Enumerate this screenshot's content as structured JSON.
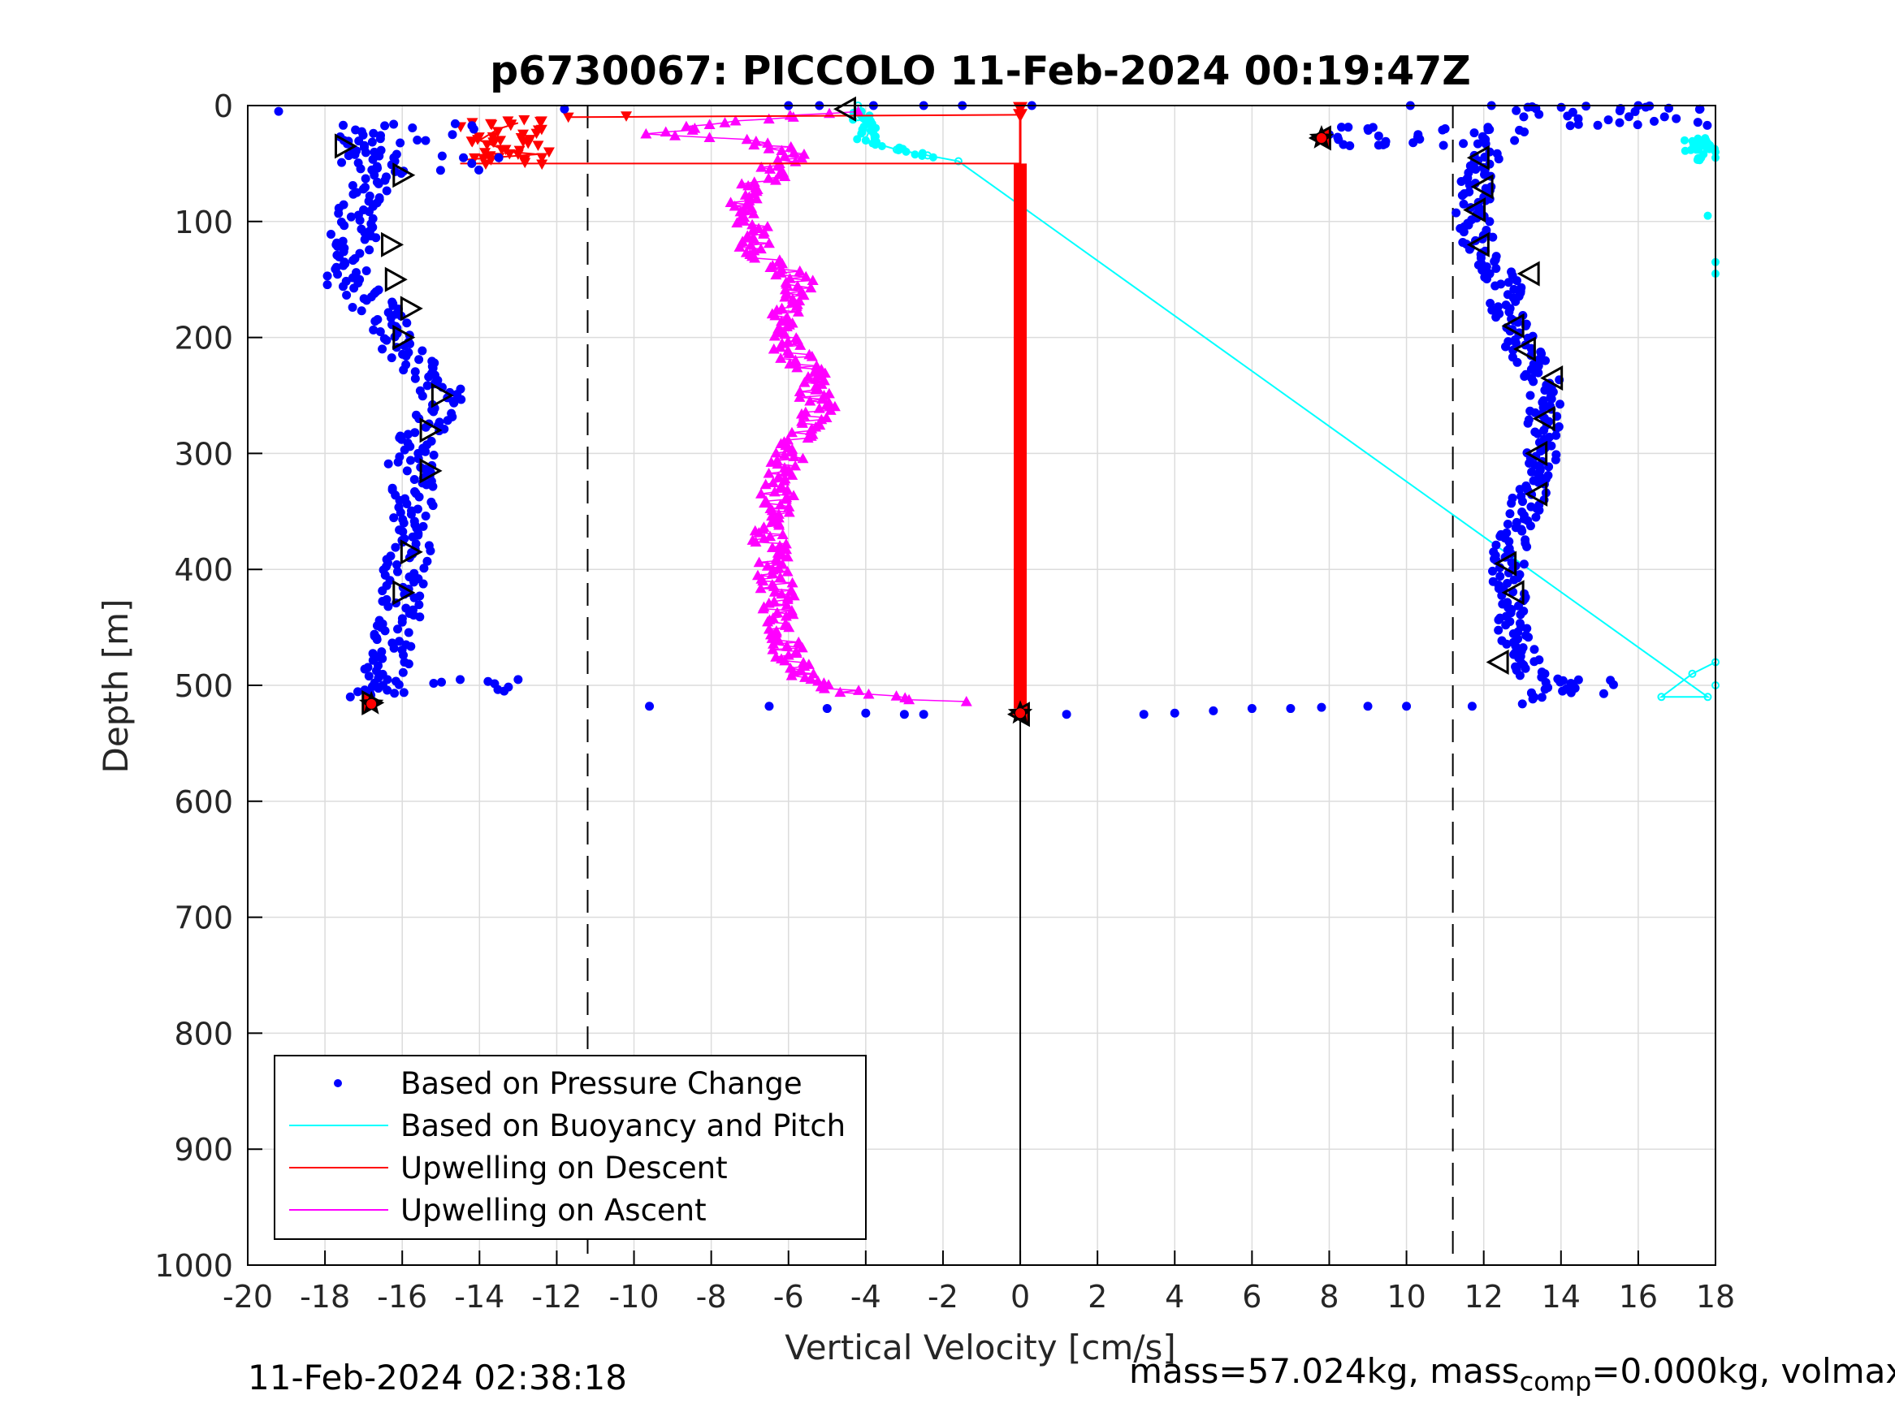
{
  "chart_data": {
    "type": "scatter",
    "title": "p6730067: PICCOLO 11-Feb-2024 00:19:47Z",
    "xlabel": "Vertical Velocity [cm/s]",
    "ylabel": "Depth [m]",
    "xlim": [
      -20,
      18
    ],
    "ylim": [
      1000,
      0
    ],
    "y_reversed": true,
    "grid": true,
    "legend_position": "bottom-left",
    "x_ticks": [
      "-20",
      "-18",
      "-16",
      "-14",
      "-12",
      "-10",
      "-8",
      "-6",
      "-4",
      "-2",
      "0",
      "2",
      "4",
      "6",
      "8",
      "10",
      "12",
      "14",
      "16",
      "18"
    ],
    "y_ticks": [
      "0",
      "100",
      "200",
      "300",
      "400",
      "500",
      "600",
      "700",
      "800",
      "900",
      "1000"
    ],
    "reference_lines": [
      {
        "x": -11.2,
        "style": "dashed",
        "color": "#000000"
      },
      {
        "x": 11.2,
        "style": "dashed",
        "color": "#000000"
      },
      {
        "x": 0,
        "style": "solid",
        "color": "#000000"
      }
    ],
    "series": [
      {
        "name": "Based on Pressure Change",
        "color": "#0000ff",
        "marker": "dot",
        "dive_profile": [
          [
            -17.2,
            20
          ],
          [
            -16.8,
            35
          ],
          [
            -16.5,
            60
          ],
          [
            -17.2,
            90
          ],
          [
            -17.3,
            120
          ],
          [
            -17.5,
            150
          ],
          [
            -16.5,
            180
          ],
          [
            -16.3,
            205
          ],
          [
            -15.0,
            240
          ],
          [
            -15.0,
            260
          ],
          [
            -15.5,
            280
          ],
          [
            -15.8,
            310
          ],
          [
            -15.6,
            340
          ],
          [
            -15.7,
            370
          ],
          [
            -15.9,
            400
          ],
          [
            -16.0,
            440
          ],
          [
            -16.3,
            480
          ],
          [
            -16.8,
            510
          ]
        ],
        "climb_profile": [
          [
            12.0,
            40
          ],
          [
            11.8,
            70
          ],
          [
            11.7,
            90
          ],
          [
            11.9,
            120
          ],
          [
            12.5,
            150
          ],
          [
            12.6,
            180
          ],
          [
            13.0,
            210
          ],
          [
            13.6,
            240
          ],
          [
            13.6,
            270
          ],
          [
            13.5,
            300
          ],
          [
            13.3,
            330
          ],
          [
            12.8,
            370
          ],
          [
            12.6,
            400
          ],
          [
            12.7,
            440
          ],
          [
            12.9,
            470
          ],
          [
            13.2,
            490
          ],
          [
            14.4,
            505
          ]
        ],
        "surface_points": [
          [
            -19.2,
            5
          ],
          [
            -11.8,
            3
          ],
          [
            -6.0,
            0
          ],
          [
            -5.2,
            0
          ],
          [
            -3.8,
            0
          ],
          [
            -2.5,
            0
          ],
          [
            -1.5,
            0
          ],
          [
            0.3,
            0
          ],
          [
            10.1,
            0
          ],
          [
            12.2,
            0
          ],
          [
            16.0,
            0
          ],
          [
            17.6,
            3
          ],
          [
            -13.5,
            45
          ],
          [
            -14.2,
            50
          ],
          [
            -14.7,
            25
          ],
          [
            8.0,
            25
          ],
          [
            9.0,
            20
          ],
          [
            10.3,
            25
          ],
          [
            11.0,
            20
          ]
        ],
        "bottom_points": [
          [
            -16.5,
            500
          ],
          [
            -14.5,
            495
          ],
          [
            -13.0,
            495
          ],
          [
            -9.6,
            518
          ],
          [
            -6.5,
            518
          ],
          [
            -5.0,
            520
          ],
          [
            -4.0,
            524
          ],
          [
            -3.0,
            525
          ],
          [
            -2.5,
            525
          ],
          [
            1.2,
            525
          ],
          [
            3.2,
            525
          ],
          [
            4.0,
            524
          ],
          [
            5.0,
            522
          ],
          [
            6.0,
            520
          ],
          [
            7.0,
            520
          ],
          [
            7.8,
            519
          ],
          [
            9.0,
            518
          ],
          [
            10.0,
            518
          ],
          [
            11.7,
            518
          ],
          [
            13.0,
            516
          ]
        ]
      },
      {
        "name": "Based on Buoyancy and Pitch",
        "color": "#00ffff",
        "marker": "line",
        "points": [
          [
            -4.2,
            0
          ],
          [
            -4.2,
            10
          ],
          [
            -3.9,
            20
          ],
          [
            -4.0,
            30
          ],
          [
            -3.2,
            38
          ],
          [
            -2.4,
            43
          ],
          [
            -1.6,
            48
          ],
          [
            17.8,
            510
          ],
          [
            16.6,
            510
          ],
          [
            17.4,
            490
          ],
          [
            18.0,
            480
          ],
          [
            18.0,
            500
          ]
        ],
        "upper_right_points": [
          [
            17.2,
            30
          ],
          [
            17.6,
            35
          ],
          [
            18.0,
            40
          ],
          [
            18.0,
            45
          ],
          [
            17.8,
            95
          ],
          [
            18.0,
            135
          ],
          [
            18.0,
            145
          ]
        ]
      },
      {
        "name": "Upwelling on Descent",
        "color": "#ff0000",
        "marker": "triangle-down",
        "profile": [
          [
            -13.0,
            15
          ],
          [
            -13.5,
            20
          ],
          [
            -14.0,
            30
          ],
          [
            -13.2,
            40
          ],
          [
            -12.5,
            42
          ],
          [
            -14.5,
            47
          ],
          [
            -11.7,
            10
          ],
          [
            -10.2,
            9
          ],
          [
            0,
            8
          ],
          [
            0,
            0
          ],
          [
            0,
            50
          ],
          [
            0,
            520
          ]
        ]
      },
      {
        "name": "Upwelling on Ascent",
        "color": "#ff00ff",
        "marker": "triangle-up",
        "profile": [
          [
            -4.5,
            5
          ],
          [
            -6.0,
            10
          ],
          [
            -8.0,
            15
          ],
          [
            -9.5,
            25
          ],
          [
            -7.0,
            30
          ],
          [
            -5.8,
            40
          ],
          [
            -6.5,
            60
          ],
          [
            -7.2,
            80
          ],
          [
            -7.0,
            100
          ],
          [
            -6.8,
            125
          ],
          [
            -5.8,
            150
          ],
          [
            -6.0,
            180
          ],
          [
            -6.2,
            200
          ],
          [
            -5.5,
            230
          ],
          [
            -5.2,
            260
          ],
          [
            -5.8,
            290
          ],
          [
            -6.2,
            320
          ],
          [
            -6.4,
            350
          ],
          [
            -6.5,
            380
          ],
          [
            -6.4,
            400
          ],
          [
            -6.2,
            440
          ],
          [
            -6.0,
            470
          ],
          [
            -5.6,
            490
          ],
          [
            -4.5,
            505
          ],
          [
            -3.0,
            512
          ],
          [
            0,
            515
          ]
        ]
      }
    ],
    "turn_markers": [
      {
        "side": "left",
        "points": [
          [
            -17.5,
            35
          ],
          [
            -16.0,
            60
          ],
          [
            -16.3,
            120
          ],
          [
            -16.2,
            150
          ],
          [
            -15.8,
            175
          ],
          [
            -16.0,
            200
          ],
          [
            -15.0,
            250
          ],
          [
            -15.3,
            280
          ],
          [
            -15.3,
            315
          ],
          [
            -15.8,
            385
          ],
          [
            -16.0,
            420
          ],
          [
            -16.8,
            515
          ]
        ]
      },
      {
        "side": "right",
        "points": [
          [
            -4.5,
            3
          ],
          [
            7.8,
            28
          ],
          [
            11.9,
            45
          ],
          [
            12.0,
            70
          ],
          [
            11.8,
            90
          ],
          [
            11.9,
            120
          ],
          [
            13.2,
            145
          ],
          [
            12.8,
            190
          ],
          [
            13.1,
            210
          ],
          [
            13.8,
            235
          ],
          [
            13.6,
            270
          ],
          [
            13.4,
            300
          ],
          [
            13.4,
            335
          ],
          [
            12.6,
            395
          ],
          [
            12.8,
            420
          ],
          [
            12.4,
            480
          ],
          [
            0,
            525
          ]
        ]
      }
    ],
    "legend": [
      {
        "label": "Based on Pressure Change",
        "color": "#0000ff",
        "style": "dot"
      },
      {
        "label": "Based on Buoyancy and Pitch",
        "color": "#00ffff",
        "style": "line"
      },
      {
        "label": "Upwelling on Descent",
        "color": "#ff0000",
        "style": "line"
      },
      {
        "label": "Upwelling on Ascent",
        "color": "#ff00ff",
        "style": "line"
      }
    ]
  },
  "footer": {
    "timestamp": "11-Feb-2024 02:38:18",
    "mass_prefix": "mass=57.024kg, mass",
    "mass_sub": "comp",
    "mass_suffix": "=0.000kg, volmax"
  }
}
